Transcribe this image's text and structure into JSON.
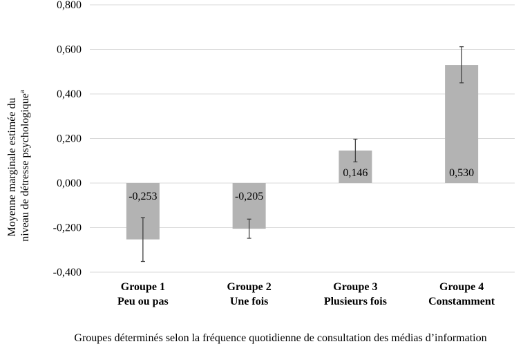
{
  "chart_data": {
    "type": "bar",
    "categories": [
      [
        "Groupe 1",
        "Peu ou pas"
      ],
      [
        "Groupe 2",
        "Une fois"
      ],
      [
        "Groupe 3",
        "Plusieurs fois"
      ],
      [
        "Groupe 4",
        "Constamment"
      ]
    ],
    "values": [
      -0.253,
      -0.205,
      0.146,
      0.53
    ],
    "data_labels": [
      "-0,253",
      "-0,205",
      "0,146",
      "0,530"
    ],
    "error_bars": [
      [
        -0.352,
        -0.155
      ],
      [
        -0.248,
        -0.162
      ],
      [
        0.095,
        0.197
      ],
      [
        0.45,
        0.612
      ]
    ],
    "yticks": [
      -0.4,
      -0.2,
      0.0,
      0.2,
      0.4,
      0.6,
      0.8
    ],
    "ytick_labels": [
      "-0,400",
      "-0,200",
      "0,000",
      "0,200",
      "0,400",
      "0,600",
      "0,800"
    ],
    "ylim": [
      -0.4,
      0.8
    ],
    "ylabel_lines": [
      "Moyenne marginale estimée du",
      "niveau de détresse psychologique"
    ],
    "ylabel_superscript": "a",
    "xlabel": "Groupes déterminés selon la fréquence quotidienne de consultation des médias d’information",
    "grid": true,
    "bar_color": "#b3b3b3",
    "grid_color": "#d9d9d9",
    "error_color": "#404040"
  }
}
